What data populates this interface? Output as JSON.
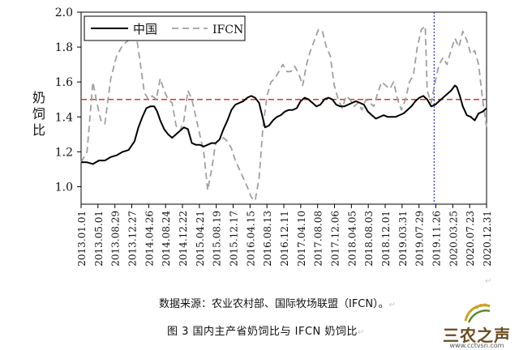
{
  "chart_data": {
    "type": "line",
    "ylabel": "奶饲比",
    "ylim": [
      0.9,
      2.0
    ],
    "yticks": [
      "1.0",
      "1.2",
      "1.4",
      "1.6",
      "1.8",
      "2.0"
    ],
    "ytick_values": [
      1.0,
      1.2,
      1.4,
      1.6,
      1.8,
      2.0
    ],
    "xlim": [
      0,
      410
    ],
    "categories": [
      "2013.01.01",
      "2013.05.01",
      "2013.08.29",
      "2013.12.27",
      "2014.04.26",
      "2014.08.24",
      "2014.12.22",
      "2015.04.21",
      "2015.08.19",
      "2015.12.17",
      "2016.04.15",
      "2016.08.13",
      "2016.12.11",
      "2017.04.10",
      "2017.08.08",
      "2017.12.06",
      "2018.04.05",
      "2018.08.03",
      "2018.12.01",
      "2019.03.31",
      "2019.07.29",
      "2019.11.26",
      "2020.03.25",
      "2020.07.23",
      "2020.12.31"
    ],
    "reference_line": {
      "y": 1.5,
      "color": "#e03030",
      "style": "dashed"
    },
    "vertical_marker": {
      "x": 357,
      "color": "#3a3aff",
      "style": "dotted"
    },
    "legend": {
      "position": "top-left"
    },
    "series": [
      {
        "name": "中国",
        "color": "#000000",
        "style": "solid",
        "points": [
          [
            0,
            1.14
          ],
          [
            6,
            1.14
          ],
          [
            12,
            1.13
          ],
          [
            18,
            1.15
          ],
          [
            24,
            1.15
          ],
          [
            30,
            1.17
          ],
          [
            36,
            1.18
          ],
          [
            42,
            1.2
          ],
          [
            48,
            1.21
          ],
          [
            54,
            1.26
          ],
          [
            58,
            1.34
          ],
          [
            62,
            1.4
          ],
          [
            66,
            1.45
          ],
          [
            70,
            1.46
          ],
          [
            74,
            1.46
          ],
          [
            77,
            1.43
          ],
          [
            80,
            1.38
          ],
          [
            84,
            1.33
          ],
          [
            88,
            1.3
          ],
          [
            92,
            1.28
          ],
          [
            96,
            1.3
          ],
          [
            100,
            1.32
          ],
          [
            104,
            1.34
          ],
          [
            108,
            1.33
          ],
          [
            112,
            1.25
          ],
          [
            116,
            1.24
          ],
          [
            120,
            1.24
          ],
          [
            124,
            1.23
          ],
          [
            128,
            1.24
          ],
          [
            132,
            1.25
          ],
          [
            136,
            1.25
          ],
          [
            140,
            1.27
          ],
          [
            144,
            1.33
          ],
          [
            148,
            1.38
          ],
          [
            152,
            1.44
          ],
          [
            156,
            1.47
          ],
          [
            160,
            1.48
          ],
          [
            164,
            1.49
          ],
          [
            168,
            1.51
          ],
          [
            172,
            1.52
          ],
          [
            176,
            1.51
          ],
          [
            180,
            1.48
          ],
          [
            183,
            1.41
          ],
          [
            186,
            1.34
          ],
          [
            190,
            1.35
          ],
          [
            194,
            1.38
          ],
          [
            198,
            1.4
          ],
          [
            202,
            1.41
          ],
          [
            206,
            1.43
          ],
          [
            210,
            1.44
          ],
          [
            214,
            1.44
          ],
          [
            218,
            1.45
          ],
          [
            222,
            1.49
          ],
          [
            226,
            1.51
          ],
          [
            230,
            1.5
          ],
          [
            234,
            1.48
          ],
          [
            238,
            1.46
          ],
          [
            242,
            1.47
          ],
          [
            246,
            1.5
          ],
          [
            250,
            1.51
          ],
          [
            254,
            1.5
          ],
          [
            258,
            1.47
          ],
          [
            262,
            1.46
          ],
          [
            266,
            1.46
          ],
          [
            270,
            1.47
          ],
          [
            274,
            1.48
          ],
          [
            278,
            1.49
          ],
          [
            282,
            1.48
          ],
          [
            286,
            1.47
          ],
          [
            290,
            1.43
          ],
          [
            294,
            1.41
          ],
          [
            298,
            1.39
          ],
          [
            302,
            1.4
          ],
          [
            306,
            1.41
          ],
          [
            310,
            1.4
          ],
          [
            314,
            1.4
          ],
          [
            318,
            1.4
          ],
          [
            322,
            1.41
          ],
          [
            326,
            1.42
          ],
          [
            330,
            1.44
          ],
          [
            334,
            1.46
          ],
          [
            338,
            1.49
          ],
          [
            342,
            1.51
          ],
          [
            346,
            1.52
          ],
          [
            350,
            1.5
          ],
          [
            354,
            1.46
          ],
          [
            358,
            1.47
          ],
          [
            362,
            1.49
          ],
          [
            366,
            1.51
          ],
          [
            370,
            1.53
          ],
          [
            374,
            1.55
          ],
          [
            378,
            1.58
          ],
          [
            380,
            1.57
          ],
          [
            383,
            1.52
          ],
          [
            386,
            1.46
          ],
          [
            390,
            1.41
          ],
          [
            394,
            1.4
          ],
          [
            398,
            1.38
          ],
          [
            402,
            1.42
          ],
          [
            406,
            1.43
          ],
          [
            410,
            1.45
          ]
        ]
      },
      {
        "name": "IFCN",
        "color": "#a0a0a0",
        "style": "dashed",
        "points": [
          [
            0,
            1.14
          ],
          [
            6,
            1.2
          ],
          [
            12,
            1.6
          ],
          [
            16,
            1.48
          ],
          [
            20,
            1.38
          ],
          [
            24,
            1.36
          ],
          [
            30,
            1.62
          ],
          [
            36,
            1.75
          ],
          [
            42,
            1.81
          ],
          [
            48,
            1.84
          ],
          [
            52,
            1.87
          ],
          [
            56,
            1.86
          ],
          [
            60,
            1.7
          ],
          [
            64,
            1.54
          ],
          [
            68,
            1.5
          ],
          [
            72,
            1.52
          ],
          [
            76,
            1.5
          ],
          [
            80,
            1.62
          ],
          [
            84,
            1.55
          ],
          [
            88,
            1.5
          ],
          [
            92,
            1.48
          ],
          [
            96,
            1.35
          ],
          [
            100,
            1.32
          ],
          [
            104,
            1.38
          ],
          [
            108,
            1.55
          ],
          [
            112,
            1.5
          ],
          [
            116,
            1.4
          ],
          [
            120,
            1.3
          ],
          [
            124,
            1.2
          ],
          [
            128,
            0.98
          ],
          [
            132,
            1.1
          ],
          [
            136,
            1.25
          ],
          [
            140,
            1.27
          ],
          [
            144,
            1.28
          ],
          [
            148,
            1.26
          ],
          [
            152,
            1.22
          ],
          [
            156,
            1.15
          ],
          [
            160,
            1.1
          ],
          [
            164,
            1.05
          ],
          [
            168,
            1.0
          ],
          [
            172,
            0.94
          ],
          [
            176,
            0.92
          ],
          [
            180,
            1.05
          ],
          [
            184,
            1.35
          ],
          [
            188,
            1.52
          ],
          [
            192,
            1.6
          ],
          [
            196,
            1.62
          ],
          [
            200,
            1.66
          ],
          [
            204,
            1.7
          ],
          [
            208,
            1.66
          ],
          [
            212,
            1.66
          ],
          [
            216,
            1.69
          ],
          [
            220,
            1.65
          ],
          [
            224,
            1.58
          ],
          [
            228,
            1.7
          ],
          [
            232,
            1.78
          ],
          [
            236,
            1.84
          ],
          [
            240,
            1.9
          ],
          [
            244,
            1.89
          ],
          [
            248,
            1.8
          ],
          [
            252,
            1.75
          ],
          [
            256,
            1.58
          ],
          [
            260,
            1.5
          ],
          [
            264,
            1.45
          ],
          [
            268,
            1.52
          ],
          [
            272,
            1.5
          ],
          [
            276,
            1.46
          ],
          [
            280,
            1.48
          ],
          [
            284,
            1.44
          ],
          [
            288,
            1.5
          ],
          [
            292,
            1.48
          ],
          [
            296,
            1.46
          ],
          [
            300,
            1.54
          ],
          [
            304,
            1.6
          ],
          [
            308,
            1.58
          ],
          [
            312,
            1.56
          ],
          [
            316,
            1.6
          ],
          [
            320,
            1.5
          ],
          [
            324,
            1.44
          ],
          [
            328,
            1.5
          ],
          [
            332,
            1.6
          ],
          [
            336,
            1.64
          ],
          [
            340,
            1.8
          ],
          [
            344,
            1.9
          ],
          [
            348,
            1.92
          ],
          [
            350,
            1.55
          ],
          [
            354,
            1.48
          ],
          [
            358,
            1.6
          ],
          [
            362,
            1.7
          ],
          [
            366,
            1.74
          ],
          [
            370,
            1.7
          ],
          [
            374,
            1.78
          ],
          [
            378,
            1.85
          ],
          [
            382,
            1.8
          ],
          [
            386,
            1.89
          ],
          [
            390,
            1.84
          ],
          [
            394,
            1.76
          ],
          [
            398,
            1.78
          ],
          [
            402,
            1.7
          ],
          [
            406,
            1.5
          ],
          [
            410,
            1.34
          ]
        ]
      }
    ]
  },
  "captions": {
    "source": "数据来源：农业农村部、国际牧场联盟（IFCN）。",
    "figure": "图 3   国内主产省奶饲比与 IFCN 奶饲比",
    "para_mark": "↵"
  },
  "watermark": {
    "name": "三农之声",
    "url": "www.cctvsn.com"
  }
}
